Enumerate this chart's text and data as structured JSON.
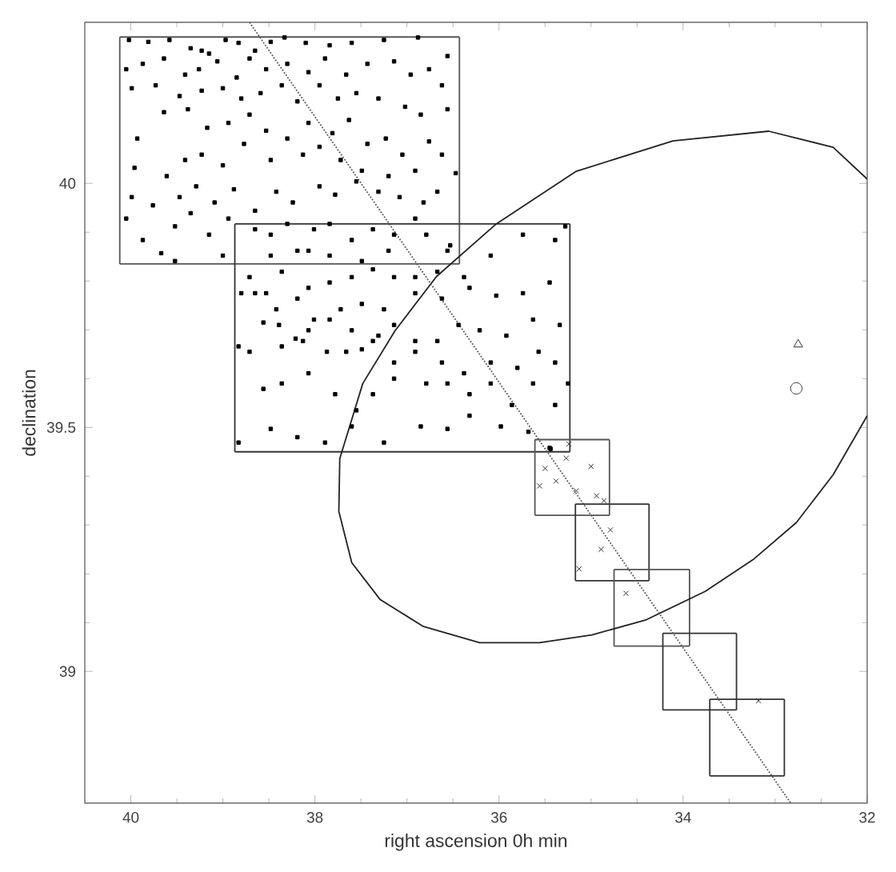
{
  "chart_data": {
    "type": "scatter",
    "xlabel": "right ascension 0h min",
    "ylabel": "declination",
    "xlim": [
      40.5,
      32
    ],
    "ylim": [
      38.73,
      40.33
    ],
    "xticks": [
      40,
      38,
      36,
      34,
      32
    ],
    "yticks": [
      39,
      39.5,
      40
    ],
    "grid": false,
    "series": [
      {
        "marker": "square",
        "color": "#000000",
        "x": [
          40.02,
          39.81,
          39.58,
          39.35,
          39.23,
          39.15,
          38.97,
          38.83,
          38.65,
          38.48,
          38.33,
          38.1,
          37.84,
          37.6,
          37.25,
          36.88,
          36.56,
          40.05,
          39.87,
          39.64,
          39.41,
          39.26,
          39.06,
          38.85,
          38.71,
          38.53,
          38.3,
          38.07,
          37.89,
          37.66,
          37.43,
          37.14,
          36.96,
          36.76,
          36.62,
          39.99,
          39.73,
          39.47,
          39.23,
          39.0,
          38.8,
          38.59,
          38.36,
          38.19,
          37.95,
          37.75,
          37.55,
          37.31,
          37.02,
          36.85,
          36.56,
          39.93,
          39.64,
          39.38,
          39.17,
          38.94,
          38.71,
          38.53,
          38.3,
          38.07,
          37.81,
          37.63,
          37.43,
          37.23,
          37.05,
          36.76,
          39.96,
          39.61,
          39.41,
          39.23,
          39.0,
          38.77,
          38.48,
          38.13,
          37.95,
          37.72,
          37.49,
          37.2,
          36.91,
          36.62,
          36.47,
          39.99,
          39.76,
          39.47,
          39.29,
          39.09,
          38.88,
          38.65,
          38.42,
          38.24,
          37.95,
          37.78,
          37.55,
          37.31,
          37.08,
          36.82,
          36.67,
          40.05,
          39.87,
          39.52,
          39.35,
          39.15,
          38.94,
          38.65,
          38.48,
          38.3,
          38.19,
          38.01,
          37.84,
          37.6,
          37.37,
          37.14,
          36.91,
          36.79,
          36.53,
          39.67,
          39.52,
          39.0,
          38.48,
          38.07,
          37.84,
          37.49,
          37.2,
          36.56,
          38.71,
          38.53,
          38.36,
          38.07,
          37.84,
          37.6,
          37.37,
          37.14,
          36.91,
          36.67,
          36.38,
          36.09,
          35.74,
          35.39,
          35.28,
          38.8,
          38.65,
          38.42,
          38.19,
          38.01,
          37.72,
          37.49,
          37.25,
          36.91,
          36.62,
          36.32,
          36.03,
          35.74,
          35.45,
          38.83,
          38.56,
          38.39,
          38.21,
          38.07,
          37.84,
          37.6,
          37.37,
          37.14,
          36.91,
          36.67,
          36.44,
          36.21,
          35.92,
          35.63,
          35.34,
          38.71,
          38.36,
          38.13,
          37.87,
          37.66,
          37.49,
          37.31,
          37.14,
          36.91,
          36.62,
          36.38,
          36.09,
          35.8,
          35.57,
          35.39,
          38.56,
          38.36,
          38.07,
          37.78,
          37.55,
          37.37,
          37.14,
          36.79,
          36.56,
          36.32,
          36.09,
          35.86,
          35.63,
          35.39,
          35.25,
          38.83,
          38.48,
          38.19,
          37.89,
          37.6,
          37.25,
          36.85,
          36.56,
          36.32,
          35.98,
          35.68,
          35.45,
          35.44
        ],
        "values": [
          40.294,
          40.29,
          40.294,
          40.277,
          40.272,
          40.266,
          40.294,
          40.288,
          40.272,
          40.29,
          40.299,
          40.288,
          40.283,
          40.288,
          40.294,
          40.299,
          40.261,
          40.234,
          40.245,
          40.256,
          40.223,
          40.234,
          40.25,
          40.217,
          40.256,
          40.234,
          40.245,
          40.228,
          40.256,
          40.223,
          40.245,
          40.25,
          40.223,
          40.234,
          40.201,
          40.195,
          40.201,
          40.179,
          40.19,
          40.195,
          40.174,
          40.185,
          40.201,
          40.168,
          40.201,
          40.174,
          40.185,
          40.174,
          40.157,
          40.141,
          40.152,
          40.092,
          40.146,
          40.152,
          40.114,
          40.124,
          40.141,
          40.108,
          40.092,
          40.124,
          40.103,
          40.13,
          40.081,
          40.092,
          40.059,
          40.086,
          40.032,
          40.015,
          40.048,
          40.059,
          40.037,
          40.081,
          40.048,
          40.059,
          40.075,
          40.048,
          40.026,
          40.015,
          40.026,
          40.059,
          40.021,
          39.972,
          39.955,
          39.972,
          39.994,
          39.961,
          39.988,
          39.944,
          39.983,
          39.961,
          39.994,
          39.977,
          40.004,
          39.983,
          39.972,
          39.961,
          39.983,
          39.928,
          39.884,
          39.912,
          39.939,
          39.895,
          39.928,
          39.906,
          39.895,
          39.917,
          39.862,
          39.906,
          39.917,
          39.884,
          39.906,
          39.895,
          39.928,
          39.895,
          39.873,
          39.857,
          39.841,
          39.852,
          39.852,
          39.862,
          39.852,
          39.841,
          39.862,
          39.862,
          39.808,
          39.775,
          39.819,
          39.786,
          39.797,
          39.808,
          39.824,
          39.808,
          39.808,
          39.819,
          39.808,
          39.852,
          39.895,
          39.884,
          39.912,
          39.775,
          39.775,
          39.742,
          39.764,
          39.721,
          39.742,
          39.753,
          39.742,
          39.775,
          39.764,
          39.786,
          39.77,
          39.775,
          39.797,
          39.666,
          39.715,
          39.71,
          39.682,
          39.699,
          39.721,
          39.699,
          39.677,
          39.71,
          39.677,
          39.677,
          39.71,
          39.699,
          39.688,
          39.721,
          39.71,
          39.655,
          39.666,
          39.677,
          39.655,
          39.655,
          39.66,
          39.688,
          39.633,
          39.655,
          39.633,
          39.611,
          39.633,
          39.622,
          39.655,
          39.633,
          39.579,
          39.59,
          39.611,
          39.568,
          39.535,
          39.568,
          39.6,
          39.59,
          39.59,
          39.568,
          39.59,
          39.546,
          39.59,
          39.546,
          39.59,
          39.469,
          39.497,
          39.48,
          39.469,
          39.502,
          39.469,
          39.502,
          39.497,
          39.524,
          39.502,
          39.491,
          39.458,
          39.456
        ]
      },
      {
        "marker": "cross",
        "color": "#333333",
        "x": [
          35.24,
          35.27,
          35.5,
          35.0,
          35.38,
          35.56,
          35.16,
          34.94,
          34.86,
          34.79,
          34.89,
          35.13,
          34.62,
          33.18
        ],
        "values": [
          39.466,
          39.437,
          39.416,
          39.42,
          39.39,
          39.38,
          39.37,
          39.36,
          39.35,
          39.29,
          39.25,
          39.21,
          39.16,
          38.94
        ]
      },
      {
        "marker": "triangle",
        "color": "#333333",
        "x": [
          32.75
        ],
        "values": [
          39.67
        ]
      },
      {
        "marker": "circle",
        "color": "#333333",
        "x": [
          32.77
        ],
        "values": [
          39.58
        ]
      },
      {
        "type": "line",
        "marker": "none",
        "line_style": "solid",
        "color": "#555555",
        "x": [
          40.12,
          36.43
        ],
        "values": [
          40.3,
          40.3
        ]
      },
      {
        "type": "line",
        "marker": "none",
        "line_style": "solid",
        "color": "#555555",
        "x": [
          36.43,
          36.43
        ],
        "values": [
          40.3,
          39.835
        ]
      },
      {
        "type": "line",
        "marker": "none",
        "line_style": "solid",
        "color": "#555555",
        "x": [
          36.43,
          40.12
        ],
        "values": [
          39.835,
          39.835
        ]
      },
      {
        "type": "line",
        "marker": "none",
        "line_style": "solid",
        "color": "#555555",
        "x": [
          40.12,
          40.12
        ],
        "values": [
          39.835,
          40.3
        ]
      },
      {
        "type": "line",
        "marker": "none",
        "line_style": "solid",
        "color": "#333333",
        "x": [
          38.87,
          35.23
        ],
        "values": [
          39.917,
          39.917
        ]
      },
      {
        "type": "line",
        "marker": "none",
        "line_style": "solid",
        "color": "#333333",
        "x": [
          35.23,
          35.23
        ],
        "values": [
          39.917,
          39.45
        ]
      },
      {
        "type": "line",
        "marker": "none",
        "line_style": "solid",
        "color": "#333333",
        "x": [
          35.23,
          38.87
        ],
        "values": [
          39.45,
          39.45
        ]
      },
      {
        "type": "line",
        "marker": "none",
        "line_style": "solid",
        "color": "#333333",
        "x": [
          38.87,
          38.87
        ],
        "values": [
          39.45,
          39.917
        ]
      },
      {
        "type": "line",
        "marker": "none",
        "line_style": "solid",
        "color": "#555555",
        "x": [
          35.61,
          34.8
        ],
        "values": [
          39.475,
          39.475
        ]
      },
      {
        "type": "line",
        "marker": "none",
        "line_style": "solid",
        "color": "#555555",
        "x": [
          34.8,
          34.8
        ],
        "values": [
          39.475,
          39.32
        ]
      },
      {
        "type": "line",
        "marker": "none",
        "line_style": "solid",
        "color": "#555555",
        "x": [
          34.8,
          35.61
        ],
        "values": [
          39.32,
          39.32
        ]
      },
      {
        "type": "line",
        "marker": "none",
        "line_style": "solid",
        "color": "#555555",
        "x": [
          35.61,
          35.61
        ],
        "values": [
          39.32,
          39.475
        ]
      },
      {
        "type": "line",
        "marker": "none",
        "line_style": "solid",
        "color": "#333333",
        "x": [
          35.17,
          34.37
        ],
        "values": [
          39.343,
          39.343
        ]
      },
      {
        "type": "line",
        "marker": "none",
        "line_style": "solid",
        "color": "#333333",
        "x": [
          34.37,
          34.37
        ],
        "values": [
          39.343,
          39.186
        ]
      },
      {
        "type": "line",
        "marker": "none",
        "line_style": "solid",
        "color": "#333333",
        "x": [
          34.37,
          35.17
        ],
        "values": [
          39.186,
          39.186
        ]
      },
      {
        "type": "line",
        "marker": "none",
        "line_style": "solid",
        "color": "#333333",
        "x": [
          35.17,
          35.17
        ],
        "values": [
          39.186,
          39.343
        ]
      },
      {
        "type": "line",
        "marker": "none",
        "line_style": "solid",
        "color": "#555555",
        "x": [
          34.75,
          33.93
        ],
        "values": [
          39.209,
          39.209
        ]
      },
      {
        "type": "line",
        "marker": "none",
        "line_style": "solid",
        "color": "#555555",
        "x": [
          33.93,
          33.93
        ],
        "values": [
          39.209,
          39.052
        ]
      },
      {
        "type": "line",
        "marker": "none",
        "line_style": "solid",
        "color": "#555555",
        "x": [
          33.93,
          34.75
        ],
        "values": [
          39.052,
          39.052
        ]
      },
      {
        "type": "line",
        "marker": "none",
        "line_style": "solid",
        "color": "#555555",
        "x": [
          34.75,
          34.75
        ],
        "values": [
          39.052,
          39.209
        ]
      },
      {
        "type": "line",
        "marker": "none",
        "line_style": "solid",
        "color": "#333333",
        "x": [
          34.22,
          33.42
        ],
        "values": [
          39.078,
          39.078
        ]
      },
      {
        "type": "line",
        "marker": "none",
        "line_style": "solid",
        "color": "#333333",
        "x": [
          33.42,
          33.42
        ],
        "values": [
          39.078,
          38.921
        ]
      },
      {
        "type": "line",
        "marker": "none",
        "line_style": "solid",
        "color": "#333333",
        "x": [
          33.42,
          34.22
        ],
        "values": [
          38.921,
          38.921
        ]
      },
      {
        "type": "line",
        "marker": "none",
        "line_style": "solid",
        "color": "#333333",
        "x": [
          34.22,
          34.22
        ],
        "values": [
          38.921,
          39.078
        ]
      },
      {
        "type": "line",
        "marker": "none",
        "line_style": "solid",
        "color": "#333333",
        "x": [
          33.71,
          32.9
        ],
        "values": [
          38.943,
          38.943
        ]
      },
      {
        "type": "line",
        "marker": "none",
        "line_style": "solid",
        "color": "#333333",
        "x": [
          32.9,
          32.9
        ],
        "values": [
          38.943,
          38.786
        ]
      },
      {
        "type": "line",
        "marker": "none",
        "line_style": "solid",
        "color": "#333333",
        "x": [
          32.9,
          33.71
        ],
        "values": [
          38.786,
          38.786
        ]
      },
      {
        "type": "line",
        "marker": "none",
        "line_style": "solid",
        "color": "#333333",
        "x": [
          33.71,
          33.71
        ],
        "values": [
          38.786,
          38.943
        ]
      },
      {
        "type": "line",
        "marker": "none",
        "line_style": "solid",
        "color": "#222222",
        "x": [
          32.0,
          32.37,
          32.77,
          33.24,
          33.76,
          34.41,
          34.99,
          35.56,
          36.21,
          36.82,
          37.29,
          37.6,
          37.74,
          37.73,
          37.48,
          37.13,
          36.68,
          36.03,
          35.16,
          34.11,
          33.07,
          32.37,
          32.0
        ],
        "values": [
          39.524,
          39.403,
          39.305,
          39.229,
          39.164,
          39.105,
          39.075,
          39.059,
          39.059,
          39.092,
          39.147,
          39.223,
          39.328,
          39.436,
          39.59,
          39.698,
          39.809,
          39.917,
          40.025,
          40.087,
          40.107,
          40.074,
          40.009
        ]
      },
      {
        "type": "line",
        "marker": "none",
        "line_style": "dotted",
        "color": "#555555",
        "x": [
          38.71,
          32.83
        ],
        "values": [
          40.33,
          38.73
        ]
      }
    ]
  }
}
